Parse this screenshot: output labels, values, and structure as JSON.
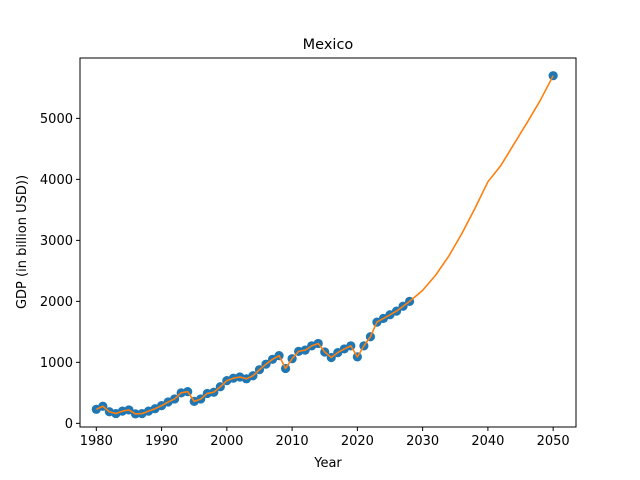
{
  "chart_data": {
    "type": "scatter",
    "title": "Mexico",
    "xlabel": "Year",
    "ylabel": "GDP (in billion USD))",
    "xlim": [
      1977.5,
      2053.5
    ],
    "ylim": [
      -60,
      5990
    ],
    "xticks": [
      1980,
      1990,
      2000,
      2010,
      2020,
      2030,
      2040,
      2050
    ],
    "yticks": [
      0,
      1000,
      2000,
      3000,
      4000,
      5000
    ],
    "grid": false,
    "legend": "none",
    "colors": {
      "points": "#1f77b4",
      "line": "#ff7f0e"
    },
    "series": [
      {
        "kind": "scatter",
        "x": [
          1980,
          1981,
          1982,
          1983,
          1984,
          1985,
          1986,
          1987,
          1988,
          1989,
          1990,
          1991,
          1992,
          1993,
          1994,
          1995,
          1996,
          1997,
          1998,
          1999,
          2000,
          2001,
          2002,
          2003,
          2004,
          2005,
          2006,
          2007,
          2008,
          2009,
          2010,
          2011,
          2012,
          2013,
          2014,
          2015,
          2016,
          2017,
          2018,
          2019,
          2020,
          2021,
          2022,
          2023,
          2024,
          2025,
          2026,
          2027,
          2028,
          2050
        ],
        "y": [
          230,
          280,
          190,
          160,
          200,
          220,
          155,
          160,
          200,
          240,
          290,
          350,
          400,
          500,
          520,
          360,
          400,
          490,
          510,
          600,
          700,
          740,
          760,
          730,
          780,
          880,
          970,
          1050,
          1110,
          900,
          1060,
          1180,
          1200,
          1270,
          1310,
          1170,
          1080,
          1160,
          1220,
          1270,
          1090,
          1270,
          1420,
          1660,
          1720,
          1780,
          1840,
          1920,
          2000,
          5700
        ]
      },
      {
        "kind": "line",
        "x": [
          1980,
          1981,
          1982,
          1983,
          1984,
          1985,
          1986,
          1987,
          1988,
          1989,
          1990,
          1991,
          1992,
          1993,
          1994,
          1995,
          1996,
          1997,
          1998,
          1999,
          2000,
          2001,
          2002,
          2003,
          2004,
          2005,
          2006,
          2007,
          2008,
          2009,
          2010,
          2011,
          2012,
          2013,
          2014,
          2015,
          2016,
          2017,
          2018,
          2019,
          2020,
          2021,
          2022,
          2023,
          2024,
          2025,
          2026,
          2027,
          2028,
          2030,
          2032,
          2034,
          2036,
          2038,
          2040,
          2042,
          2044,
          2046,
          2048,
          2050
        ],
        "y": [
          230,
          280,
          190,
          160,
          200,
          220,
          155,
          160,
          200,
          240,
          290,
          350,
          400,
          500,
          520,
          360,
          400,
          490,
          510,
          600,
          700,
          740,
          760,
          730,
          780,
          880,
          970,
          1050,
          1110,
          900,
          1060,
          1180,
          1200,
          1270,
          1310,
          1170,
          1080,
          1160,
          1220,
          1270,
          1090,
          1270,
          1420,
          1660,
          1720,
          1780,
          1840,
          1920,
          2000,
          2180,
          2430,
          2740,
          3110,
          3520,
          3960,
          4230,
          4580,
          4930,
          5290,
          5700
        ]
      }
    ]
  }
}
